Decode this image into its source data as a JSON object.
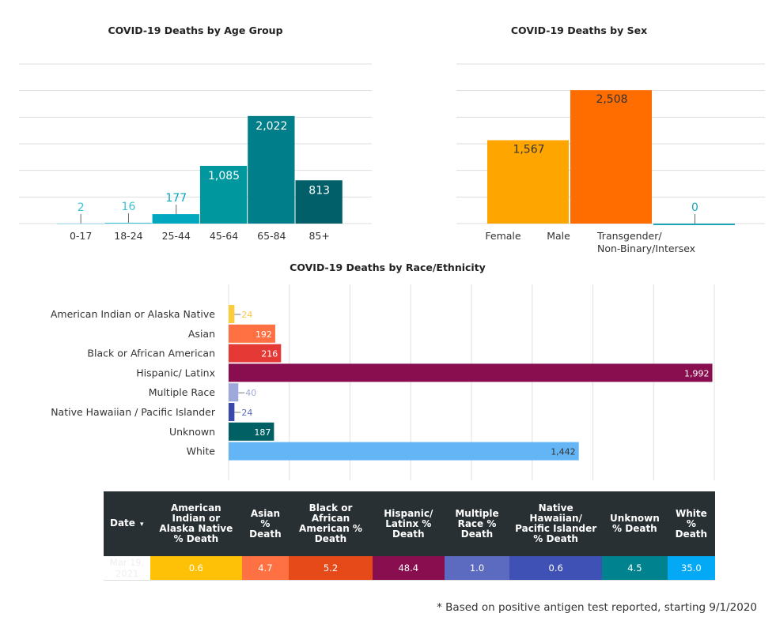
{
  "chart_data": [
    {
      "type": "bar",
      "title": "COVID-19 Deaths by Age Group",
      "categories": [
        "0-17",
        "18-24",
        "25-44",
        "45-64",
        "65-84",
        "85+"
      ],
      "values": [
        2,
        16,
        177,
        1085,
        2022,
        813
      ],
      "value_labels": [
        "2",
        "16",
        "177",
        "1,085",
        "2,022",
        "813"
      ],
      "colors": [
        "#9ee0ea",
        "#3cc3d4",
        "#00a8bf",
        "#00979f",
        "#007f8a",
        "#005f68"
      ],
      "ylim": [
        0,
        3000
      ],
      "grid": true,
      "gridlines": 500
    },
    {
      "type": "bar",
      "title": "COVID-19 Deaths by Sex",
      "categories": [
        "Female",
        "Male",
        "Transgender/ Non-Binary/Intersex"
      ],
      "category_lines": [
        [
          "Female"
        ],
        [
          "Male"
        ],
        [
          "Transgender/",
          "Non-Binary/Intersex"
        ]
      ],
      "values": [
        1567,
        2508,
        0
      ],
      "value_labels": [
        "1,567",
        "2,508",
        "0"
      ],
      "colors": [
        "#ffa500",
        "#ff6d00",
        "#1aa5b8"
      ],
      "ylim": [
        0,
        3000
      ],
      "grid": true,
      "gridlines": 500
    },
    {
      "type": "bar",
      "orientation": "horizontal",
      "title": "COVID-19 Deaths by Race/Ethnicity",
      "categories": [
        "American Indian or Alaska Native",
        "Asian",
        "Black or African American",
        "Hispanic/ Latinx",
        "Multiple Race",
        "Native Hawaiian / Pacific Islander",
        "Unknown",
        "White"
      ],
      "values": [
        24,
        192,
        216,
        1992,
        40,
        24,
        187,
        1442
      ],
      "value_labels": [
        "24",
        "192",
        "216",
        "1,992",
        "40",
        "24",
        "187",
        "1,442"
      ],
      "colors": [
        "#fbcd3c",
        "#ff7043",
        "#e53935",
        "#880e4f",
        "#9fa8da",
        "#3949ab",
        "#006064",
        "#64b5f6"
      ],
      "label_colors": [
        "#f5c84c",
        "#fff",
        "#fff",
        "#fff",
        "#9fa8da",
        "#5c6bc0",
        "#fff",
        "#333"
      ],
      "xlim": [
        0,
        2000
      ],
      "grid": true,
      "gridlines": 250
    }
  ],
  "table": {
    "headers": [
      "Date",
      "American Indian or Alaska Native % Death",
      "Asian % Death",
      "Black or African American % Death",
      "Hispanic/ Latinx % Death",
      "Multiple Race % Death",
      "Native Hawaiian/ Pacific Islander % Death",
      "Unknown % Death",
      "White % Death"
    ],
    "sort_icon": "▾",
    "row": [
      "Mar 19, 2021",
      "0.6",
      "4.7",
      "5.2",
      "48.4",
      "1.0",
      "0.6",
      "4.5",
      "35.0"
    ],
    "colors": [
      "#ffffff",
      "#ffc107",
      "#ff7043",
      "#e64a19",
      "#880e4f",
      "#5c6bc0",
      "#3f51b5",
      "#00838f",
      "#03a9f4"
    ]
  },
  "footnote": "* Based on positive antigen test reported, starting 9/1/2020"
}
